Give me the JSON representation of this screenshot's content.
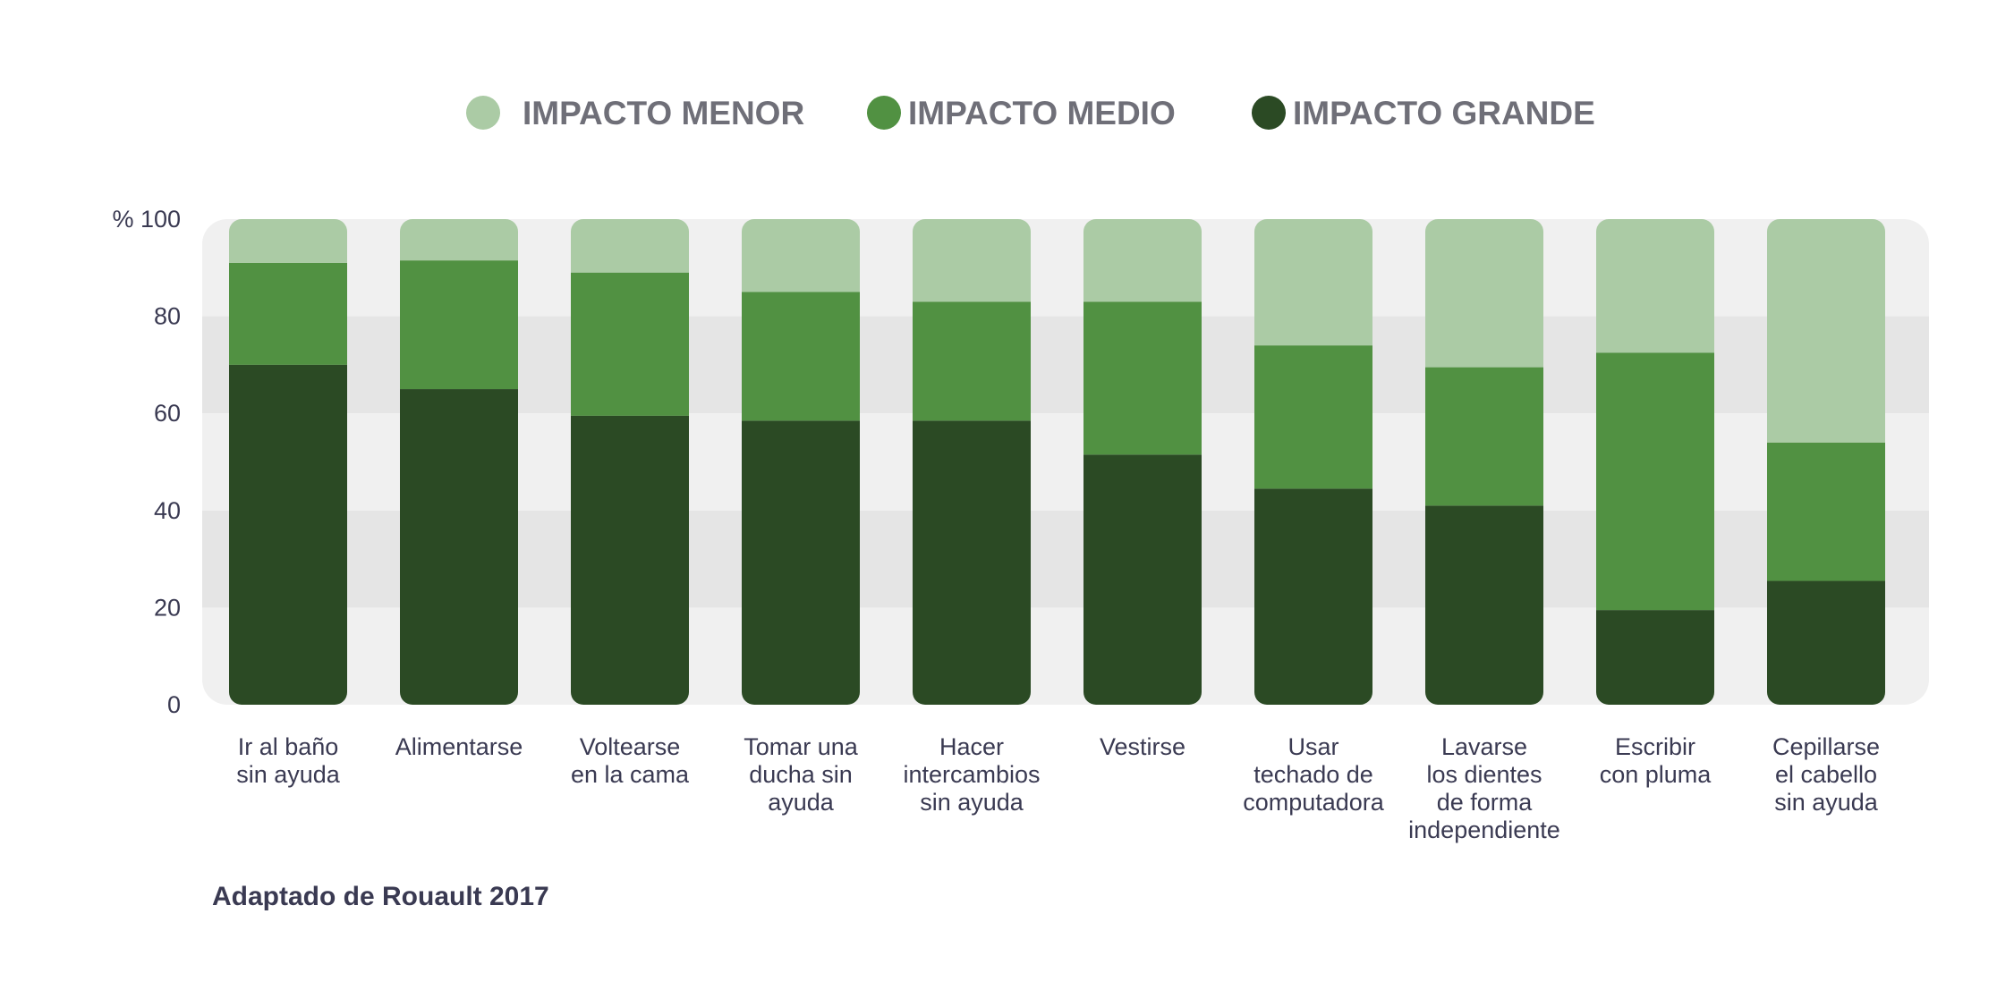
{
  "colors": {
    "minor": "#abcba5",
    "medium": "#519142",
    "major": "#2b4a24",
    "band_light": "#f0f0f0",
    "band_dark": "#e5e5e5"
  },
  "legend": [
    {
      "name": "IMPACTO MENOR",
      "color": "#abcba5"
    },
    {
      "name": "IMPACTO MEDIO",
      "color": "#519142"
    },
    {
      "name": "IMPACTO GRANDE",
      "color": "#2b4a24"
    }
  ],
  "source": "Adaptado de Rouault 2017",
  "chart_data": {
    "type": "bar",
    "stacked": true,
    "ylim": [
      0,
      100
    ],
    "yticks": [
      {
        "value": 0,
        "label": "0"
      },
      {
        "value": 20,
        "label": "20"
      },
      {
        "value": 40,
        "label": "40"
      },
      {
        "value": 60,
        "label": "60"
      },
      {
        "value": 80,
        "label": "80"
      },
      {
        "value": 100,
        "label": "% 100"
      }
    ],
    "categories": [
      [
        "Ir al baño",
        "sin ayuda"
      ],
      [
        "Alimentarse"
      ],
      [
        "Voltearse",
        "en la cama"
      ],
      [
        "Tomar una",
        "ducha sin",
        "ayuda"
      ],
      [
        "Hacer",
        "intercambios",
        "sin ayuda"
      ],
      [
        "Vestirse"
      ],
      [
        "Usar",
        "techado de",
        "computadora"
      ],
      [
        "Lavarse",
        "los dientes",
        "de forma",
        "independiente"
      ],
      [
        "Escribir",
        "con pluma"
      ],
      [
        "Cepillarse",
        "el cabello",
        "sin ayuda"
      ]
    ],
    "series": [
      {
        "name": "IMPACTO GRANDE",
        "color": "#2b4a24",
        "values": [
          70,
          65,
          59.5,
          58.5,
          58.5,
          51.5,
          44.5,
          41,
          19.5,
          25.5
        ]
      },
      {
        "name": "IMPACTO MEDIO",
        "color": "#519142",
        "values": [
          21,
          26.5,
          29.5,
          26.5,
          24.5,
          31.5,
          29.5,
          28.5,
          53,
          28.5
        ]
      },
      {
        "name": "IMPACTO MENOR",
        "color": "#abcba5",
        "values": [
          9,
          8.5,
          11,
          15,
          17,
          17,
          26,
          30.5,
          27.5,
          46
        ]
      }
    ],
    "legend_position": "top-center",
    "grid": "alternating-bands"
  }
}
